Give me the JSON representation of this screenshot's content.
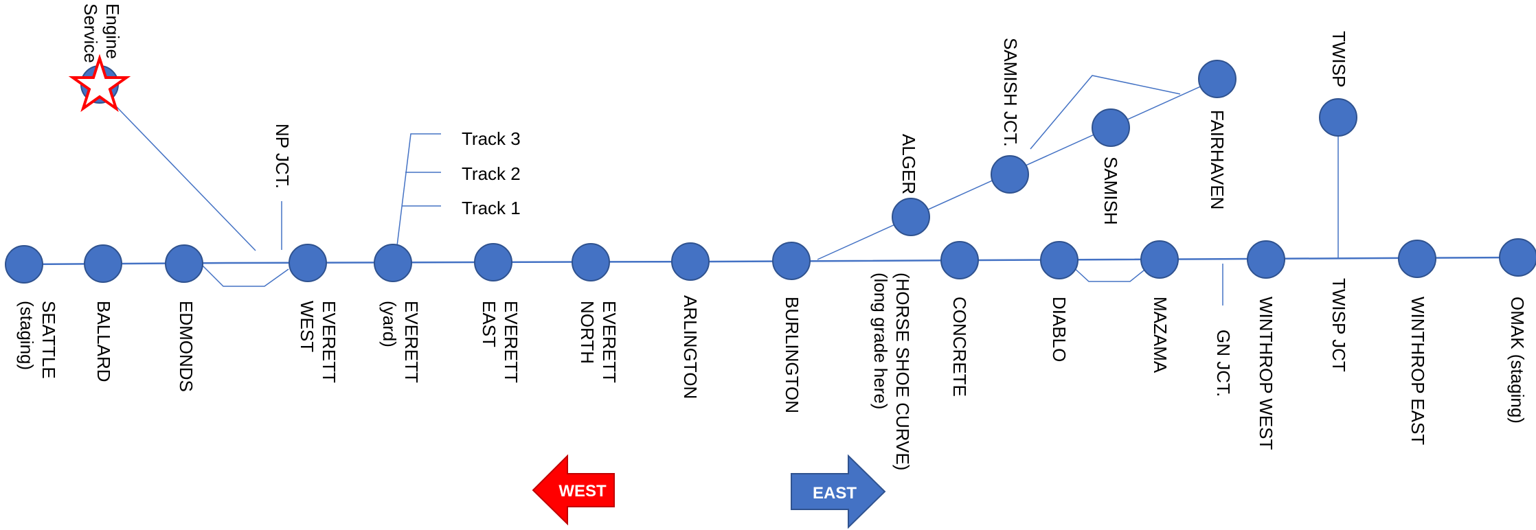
{
  "colors": {
    "station": "#4472C4",
    "station_stroke": "#2F528F",
    "line": "#4472C4",
    "west_arrow": "#FF0000",
    "west_arrow_stroke": "#C00000",
    "east_arrow": "#4472C4",
    "east_arrow_stroke": "#2F528F",
    "star_fill": "#FFFFFF",
    "star_stroke": "#FF0000"
  },
  "stations": {
    "seattle": [
      "SEATTLE",
      "(staging)"
    ],
    "ballard": [
      "BALLARD"
    ],
    "edmonds": [
      "EDMONDS"
    ],
    "everett_west": [
      "EVERETT",
      "WEST"
    ],
    "everett_yard": [
      "EVERETT",
      "(yard)"
    ],
    "everett_east": [
      "EVERETT",
      "EAST"
    ],
    "everett_north": [
      "EVERETT",
      "NORTH"
    ],
    "arlington": [
      "ARLINGTON"
    ],
    "burlington": [
      "BURLINGTON"
    ],
    "horseshoe": [
      "(HORSE SHOE CURVE)",
      "(long grade here)"
    ],
    "concrete": [
      "CONCRETE"
    ],
    "diablo": [
      "DIABLO"
    ],
    "mazama": [
      "MAZAMA"
    ],
    "gn_jct": [
      "GN JCT."
    ],
    "winthrop_west": [
      "WINTHROP WEST"
    ],
    "twisp_jct": [
      "TWISP JCT"
    ],
    "winthrop_east": [
      "WINTHROP EAST"
    ],
    "omak": [
      "OMAK  (staging)"
    ],
    "np_jct": [
      "NP JCT."
    ],
    "engine_service": [
      "Engine",
      "Service"
    ],
    "alger": [
      "ALGER"
    ],
    "samish_jct": [
      "SAMISH JCT."
    ],
    "samish": [
      "SAMISH"
    ],
    "fairhaven": [
      "FAIRHAVEN"
    ],
    "twisp": [
      "TWISP"
    ]
  },
  "tracks": [
    "Track 3",
    "Track 2",
    "Track 1"
  ],
  "arrows": {
    "west": "WEST",
    "east": "EAST"
  }
}
